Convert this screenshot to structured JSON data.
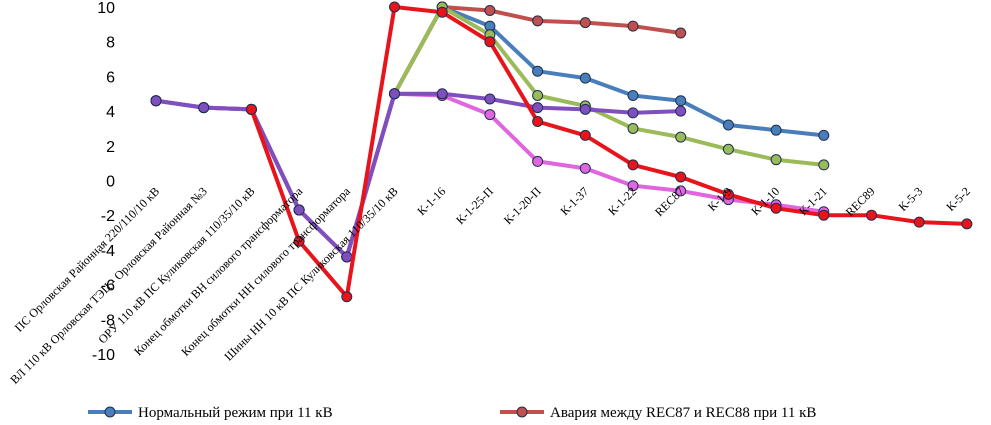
{
  "chart_data": {
    "type": "line",
    "title": "",
    "xlabel": "",
    "ylabel": "",
    "ylim": [
      -10,
      10
    ],
    "yticks": [
      10,
      8,
      6,
      4,
      2,
      0,
      -2,
      -4,
      -6,
      -8,
      -10
    ],
    "grid": false,
    "legend_position": "bottom",
    "categories": [
      "ПС Орловская Районная 220/110/10 кВ",
      "ВЛ 110 кВ Орловская ТЭЦ - Орловская Районная №3",
      "ОРУ 110 кВ ПС Куликовская 110/35/10 кВ",
      "Конец обмотки ВН силового трансформатора",
      "Конец обмотки НН силового трансформатора",
      "Шины НН 10 кВ ПС Куликовская 110/35/10 кВ",
      "К-1-16",
      "К-1-25-П",
      "К-1-20-П",
      "К-1-37",
      "К-1-22",
      "REC87",
      "К-1-9",
      "К-1-10",
      "К-1-21",
      "REC89",
      "К-5-3",
      "К-5-2"
    ],
    "series": [
      {
        "name": "Нормальный режим при 11 кВ",
        "color": "#4a7ebb",
        "values": [
          4.6,
          4.2,
          4.1,
          -1.7,
          -4.4,
          5.0,
          10.0,
          8.9,
          6.3,
          5.9,
          4.9,
          4.6,
          3.2,
          2.9,
          2.6,
          null,
          null,
          null
        ]
      },
      {
        "name": "Авария между REC87 и REC88 при 11 кВ",
        "color": "#c0504d",
        "values": [
          4.6,
          4.2,
          4.1,
          -1.7,
          -4.4,
          5.0,
          10.0,
          9.8,
          9.2,
          9.1,
          8.9,
          8.5,
          null,
          null,
          null,
          null,
          null,
          null
        ]
      },
      {
        "name": "",
        "color": "#9bbb59",
        "values": [
          4.6,
          4.2,
          4.1,
          -1.7,
          -4.4,
          5.0,
          10.0,
          8.4,
          4.9,
          4.3,
          3.0,
          2.5,
          1.8,
          1.2,
          0.9,
          null,
          null,
          null
        ]
      },
      {
        "name": "",
        "color": "#e066e0",
        "values": [
          4.6,
          4.2,
          4.1,
          -1.7,
          -4.4,
          5.0,
          4.9,
          3.8,
          1.1,
          0.7,
          -0.3,
          -0.6,
          -1.1,
          -1.4,
          -1.8,
          null,
          null,
          null
        ]
      },
      {
        "name": "",
        "color": "#7f4fc0",
        "values": [
          4.6,
          4.2,
          4.1,
          -1.7,
          -4.4,
          5.0,
          5.0,
          4.7,
          4.2,
          4.1,
          3.9,
          4.0,
          null,
          null,
          null,
          null,
          null,
          null
        ]
      },
      {
        "name": "",
        "color": "#e8141b",
        "values": [
          null,
          null,
          4.1,
          -3.5,
          -6.7,
          10.0,
          9.7,
          8.0,
          3.4,
          2.6,
          0.9,
          0.2,
          -0.8,
          -1.6,
          -2.0,
          -2.0,
          -2.4,
          -2.5
        ]
      }
    ]
  }
}
